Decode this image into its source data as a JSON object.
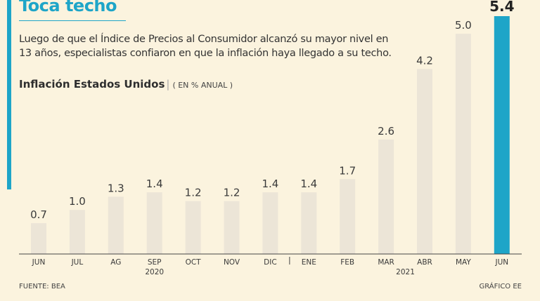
{
  "header": {
    "title": "Toca techo",
    "subtitle": "Luego de que el Índice de Precios al Consumidor alcanzó su mayor nivel en 13 años, especialistas confiaron en que la inflación haya llegado a su techo."
  },
  "chart_data": {
    "type": "bar",
    "title": "Inflación Estados Unidos",
    "unit_label": "( EN % ANUAL )",
    "categories": [
      "JUN",
      "JUL",
      "AG",
      "SEP",
      "OCT",
      "NOV",
      "DIC",
      "ENE",
      "FEB",
      "MAR",
      "ABR",
      "MAY",
      "JUN"
    ],
    "values": [
      0.7,
      1.0,
      1.3,
      1.4,
      1.2,
      1.2,
      1.4,
      1.4,
      1.7,
      2.6,
      4.2,
      5.0,
      5.4
    ],
    "value_labels": [
      "0.7",
      "1.0",
      "1.3",
      "1.4",
      "1.2",
      "1.2",
      "1.4",
      "1.4",
      "1.7",
      "2.6",
      "4.2",
      "5.0",
      "5.4"
    ],
    "highlight_index": 12,
    "year_labels": [
      {
        "text": "2020",
        "center_index": 3
      },
      {
        "text": "2021",
        "center_index": 9.5
      }
    ],
    "ylim": [
      0,
      5.4
    ],
    "colors": {
      "bar": "#ece5d7",
      "highlight": "#1ea5c8",
      "axis": "#444444",
      "text": "#3a3a3a"
    }
  },
  "footer": {
    "source": "FUENTE: BEA",
    "credit": "GRÁFICO EE"
  }
}
